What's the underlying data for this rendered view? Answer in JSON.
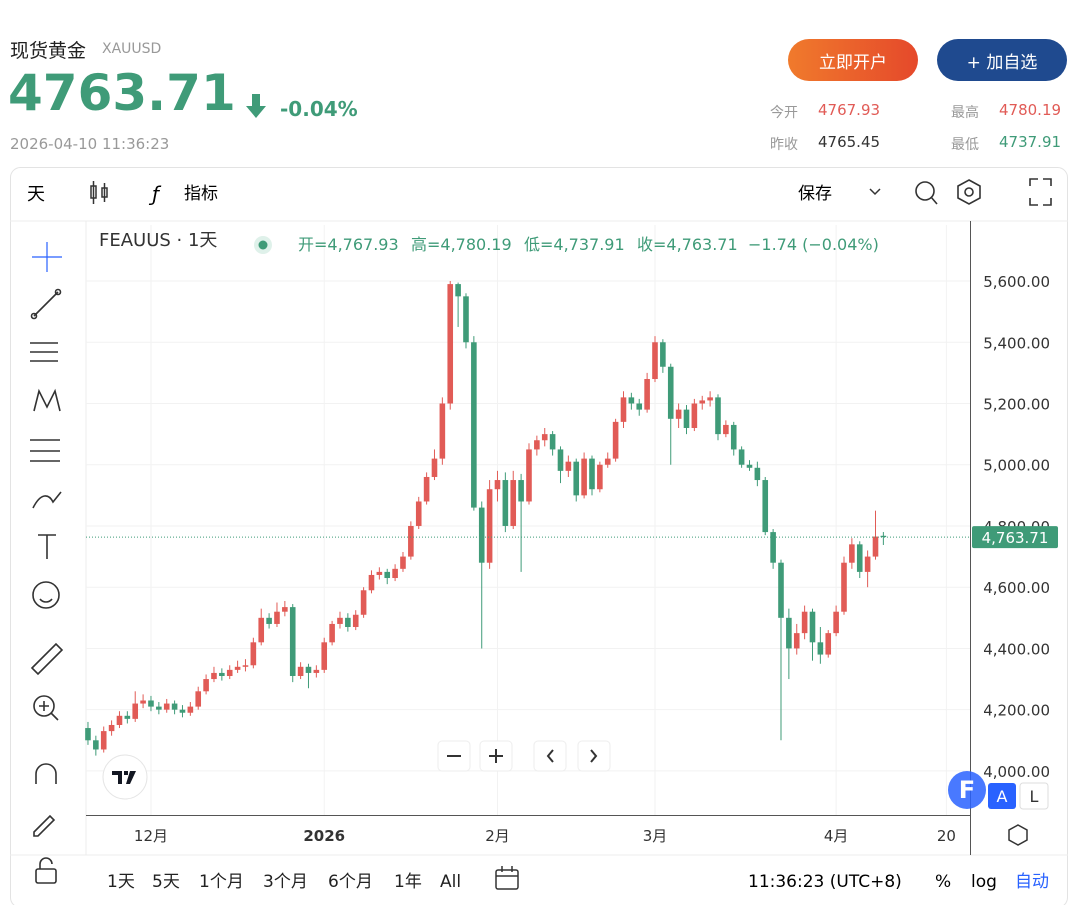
{
  "header": {
    "name": "现货黄金",
    "symbol": "XAUUSD",
    "price": "4763.71",
    "change": "-0.04%",
    "time": "2026-04-10 11:36:23"
  },
  "buttons": {
    "open_account": "立即开户",
    "watchlist": "+ 加自选"
  },
  "stats": [
    {
      "label": "今开",
      "value": "4767.93"
    },
    {
      "label": "最高",
      "value": "4780.19"
    },
    {
      "label": "昨收",
      "value": "4765.45"
    },
    {
      "label": "最低",
      "value": "4737.91"
    }
  ],
  "toolbar": {
    "interval": "天",
    "indicators": "指标",
    "save": "保存"
  },
  "chart_data": {
    "type": "candlestick",
    "legend": {
      "symbol": "FEAUUS · 1天",
      "items": [
        "开=4,767.93",
        "高=4,780.19",
        "低=4,737.91",
        "收=4,763.71"
      ],
      "change": "−1.74 (−0.04%)"
    },
    "up_color": "#e15b56",
    "down_color": "#3f9b78",
    "grid": true,
    "categories": [
      null,
      null,
      null,
      null,
      null,
      null,
      null,
      null,
      null,
      null,
      null,
      null,
      null,
      null,
      null,
      null,
      null,
      null,
      null,
      null,
      null,
      null,
      null,
      null,
      null,
      null,
      null,
      null,
      null,
      null,
      null,
      null,
      null,
      null,
      null,
      null,
      null,
      null,
      null,
      null,
      null,
      null,
      null,
      null,
      null,
      null,
      null,
      null,
      null,
      null,
      null,
      null,
      null,
      null,
      null,
      null,
      null,
      null,
      null,
      null,
      null,
      null,
      null,
      null,
      null,
      null,
      null,
      null,
      null,
      null,
      null,
      null,
      null,
      null,
      null,
      null,
      null,
      null,
      null,
      null,
      null,
      null,
      null,
      null,
      null,
      null,
      null,
      null,
      null,
      null,
      null,
      null,
      null,
      null,
      null,
      null,
      null,
      null,
      null,
      null,
      null,
      null
    ],
    "ohlc": [
      [
        4140,
        4160,
        4085,
        4100
      ],
      [
        4100,
        4115,
        4050,
        4070
      ],
      [
        4070,
        4145,
        4060,
        4130
      ],
      [
        4130,
        4165,
        4115,
        4150
      ],
      [
        4150,
        4195,
        4140,
        4180
      ],
      [
        4180,
        4195,
        4155,
        4170
      ],
      [
        4170,
        4260,
        4160,
        4220
      ],
      [
        4220,
        4250,
        4205,
        4230
      ],
      [
        4230,
        4245,
        4195,
        4210
      ],
      [
        4210,
        4225,
        4185,
        4200
      ],
      [
        4200,
        4235,
        4190,
        4220
      ],
      [
        4220,
        4230,
        4185,
        4200
      ],
      [
        4200,
        4215,
        4175,
        4190
      ],
      [
        4190,
        4225,
        4180,
        4210
      ],
      [
        4210,
        4275,
        4200,
        4260
      ],
      [
        4260,
        4315,
        4250,
        4300
      ],
      [
        4300,
        4340,
        4290,
        4320
      ],
      [
        4320,
        4335,
        4295,
        4310
      ],
      [
        4310,
        4345,
        4300,
        4330
      ],
      [
        4330,
        4360,
        4320,
        4340
      ],
      [
        4340,
        4365,
        4325,
        4345
      ],
      [
        4345,
        4435,
        4335,
        4420
      ],
      [
        4420,
        4530,
        4410,
        4500
      ],
      [
        4500,
        4515,
        4465,
        4480
      ],
      [
        4480,
        4550,
        4470,
        4520
      ],
      [
        4520,
        4555,
        4505,
        4535
      ],
      [
        4535,
        4545,
        4290,
        4310
      ],
      [
        4310,
        4355,
        4300,
        4340
      ],
      [
        4340,
        4350,
        4270,
        4320
      ],
      [
        4320,
        4345,
        4305,
        4330
      ],
      [
        4330,
        4435,
        4320,
        4420
      ],
      [
        4420,
        4490,
        4410,
        4480
      ],
      [
        4480,
        4520,
        4465,
        4500
      ],
      [
        4500,
        4515,
        4455,
        4470
      ],
      [
        4470,
        4525,
        4460,
        4510
      ],
      [
        4510,
        4600,
        4500,
        4590
      ],
      [
        4590,
        4655,
        4580,
        4640
      ],
      [
        4640,
        4665,
        4625,
        4650
      ],
      [
        4650,
        4660,
        4610,
        4630
      ],
      [
        4630,
        4675,
        4620,
        4660
      ],
      [
        4660,
        4715,
        4650,
        4700
      ],
      [
        4700,
        4815,
        4690,
        4800
      ],
      [
        4800,
        4895,
        4790,
        4880
      ],
      [
        4880,
        4975,
        4870,
        4960
      ],
      [
        4960,
        5050,
        4950,
        5020
      ],
      [
        5020,
        5220,
        5000,
        5200
      ],
      [
        5200,
        5600,
        5180,
        5590
      ],
      [
        5590,
        5595,
        5450,
        5550
      ],
      [
        5550,
        5560,
        5380,
        5400
      ],
      [
        5400,
        5420,
        4850,
        4860
      ],
      [
        4860,
        4880,
        4400,
        4680
      ],
      [
        4680,
        4950,
        4660,
        4920
      ],
      [
        4920,
        4980,
        4880,
        4950
      ],
      [
        4950,
        4975,
        4780,
        4800
      ],
      [
        4800,
        4980,
        4790,
        4950
      ],
      [
        4950,
        4970,
        4650,
        4880
      ],
      [
        4880,
        5070,
        4870,
        5050
      ],
      [
        5050,
        5095,
        5030,
        5080
      ],
      [
        5080,
        5120,
        5060,
        5100
      ],
      [
        5100,
        5110,
        5030,
        5050
      ],
      [
        5050,
        5060,
        4940,
        4980
      ],
      [
        4980,
        5030,
        4960,
        5010
      ],
      [
        5010,
        5020,
        4880,
        4900
      ],
      [
        4900,
        5040,
        4890,
        5020
      ],
      [
        5020,
        5030,
        4900,
        4920
      ],
      [
        4920,
        5010,
        4910,
        5000
      ],
      [
        5000,
        5040,
        4990,
        5020
      ],
      [
        5020,
        5150,
        5010,
        5140
      ],
      [
        5140,
        5240,
        5120,
        5220
      ],
      [
        5220,
        5235,
        5180,
        5200
      ],
      [
        5200,
        5215,
        5160,
        5180
      ],
      [
        5180,
        5300,
        5170,
        5280
      ],
      [
        5280,
        5420,
        5270,
        5400
      ],
      [
        5400,
        5410,
        5300,
        5320
      ],
      [
        5320,
        5330,
        5000,
        5150
      ],
      [
        5150,
        5200,
        5120,
        5180
      ],
      [
        5180,
        5195,
        5100,
        5120
      ],
      [
        5120,
        5215,
        5110,
        5200
      ],
      [
        5200,
        5225,
        5180,
        5210
      ],
      [
        5210,
        5240,
        5190,
        5220
      ],
      [
        5220,
        5230,
        5080,
        5100
      ],
      [
        5100,
        5145,
        5090,
        5130
      ],
      [
        5130,
        5140,
        5030,
        5050
      ],
      [
        5050,
        5060,
        4990,
        5000
      ],
      [
        5000,
        5015,
        4980,
        4990
      ],
      [
        4990,
        5010,
        4930,
        4950
      ],
      [
        4950,
        4960,
        4770,
        4780
      ],
      [
        4780,
        4790,
        4660,
        4680
      ],
      [
        4680,
        4690,
        4100,
        4500
      ],
      [
        4500,
        4530,
        4300,
        4400
      ],
      [
        4400,
        4480,
        4380,
        4450
      ],
      [
        4450,
        4540,
        4430,
        4520
      ],
      [
        4520,
        4530,
        4360,
        4420
      ],
      [
        4420,
        4470,
        4350,
        4380
      ],
      [
        4380,
        4460,
        4370,
        4450
      ],
      [
        4450,
        4540,
        4440,
        4520
      ],
      [
        4520,
        4700,
        4510,
        4680
      ],
      [
        4680,
        4760,
        4660,
        4740
      ],
      [
        4740,
        4750,
        4630,
        4650
      ],
      [
        4650,
        4720,
        4600,
        4700
      ],
      [
        4700,
        4850,
        4690,
        4765.45
      ],
      [
        4767.93,
        4780.19,
        4737.91,
        4763.71
      ]
    ],
    "xlim": [
      -0.25,
      112
    ],
    "xticks": [
      {
        "value": 8,
        "label": "12月"
      },
      {
        "value": 30,
        "label": "2026"
      },
      {
        "value": 52,
        "label": "2月"
      },
      {
        "value": 72,
        "label": "3月"
      },
      {
        "value": 95,
        "label": "4月"
      },
      {
        "value": 109,
        "label": "20"
      }
    ],
    "ylim": [
      3856,
      5783
    ],
    "yticks": [
      {
        "value": 4000,
        "label": "4,000.00"
      },
      {
        "value": 4200,
        "label": "4,200.00"
      },
      {
        "value": 4400,
        "label": "4,400.00"
      },
      {
        "value": 4600,
        "label": "4,600.00"
      },
      {
        "value": 4800,
        "label": "4,800.00"
      },
      {
        "value": 5000,
        "label": "5,000.00"
      },
      {
        "value": 5200,
        "label": "5,200.00"
      },
      {
        "value": 5400,
        "label": "5,400.00"
      },
      {
        "value": 5600,
        "label": "5,600.00"
      }
    ],
    "last_price": {
      "value": 4763.71,
      "label": "4,763.71"
    }
  },
  "ranges": [
    "1天",
    "5天",
    "1个月",
    "3个月",
    "6个月",
    "1年",
    "All"
  ],
  "footer": {
    "time": "11:36:23 (UTC+8)",
    "percent": "%",
    "log": "log",
    "auto": "自动"
  },
  "badges": {
    "f": "F",
    "a": "A",
    "l": "L"
  }
}
